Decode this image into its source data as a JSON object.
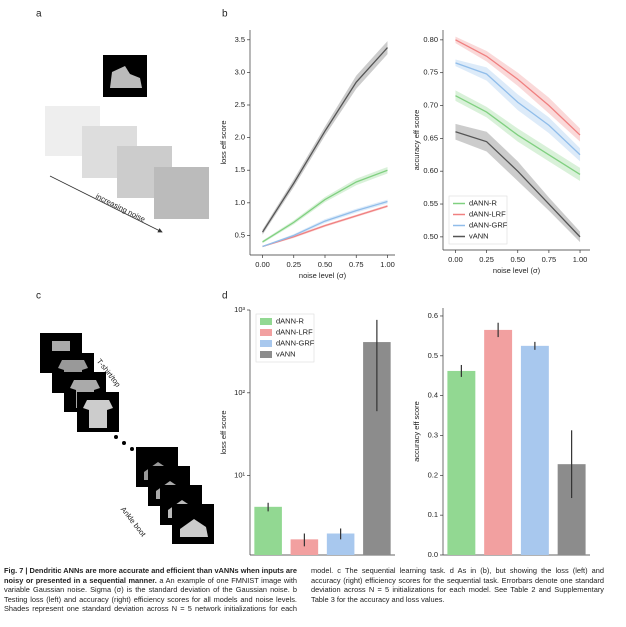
{
  "panel_labels": [
    "a",
    "b",
    "c",
    "d"
  ],
  "annotations": {
    "noise": "increasing noise",
    "first_class": "T-shirt/top",
    "last_class": "Ankle boot"
  },
  "caption": {
    "title": "Fig. 7 | Dendritic ANNs are more accurate and efficient than vANNs when inputs are noisy or presented in a sequential manner.",
    "body": "a An example of one FMNIST image with variable Gaussian noise. Sigma (σ) is the standard deviation of the Gaussian noise. b Testing loss (left) and accuracy (right) efficiency scores for all models and noise levels. Shades represent one standard deviation across N = 5 network initializations for each model. c The sequential learning task. d As in (b), but showing the loss (left) and accuracy (right) efficiency scores for the sequential task. Errorbars denote one standard deviation across N = 5 initializations for each model. See Table 2 and Supplementary Table 3 for the accuracy and loss values."
  },
  "chart_data": [
    {
      "type": "line",
      "xlabel": "noise level (σ)",
      "ylabel": "loss eff score",
      "x": [
        0,
        0.25,
        0.5,
        0.75,
        1.0
      ],
      "xlim": [
        -0.1,
        1.06
      ],
      "xticks": [
        {
          "value": 0,
          "label": "0.00"
        },
        0.25,
        {
          "value": 0.5,
          "label": "0.50"
        },
        0.75,
        {
          "value": 1,
          "label": "1.00"
        }
      ],
      "ylim": [
        0.2,
        3.65
      ],
      "yticks": [
        0.5,
        {
          "value": 1,
          "label": "1.0"
        },
        1.5,
        {
          "value": 2,
          "label": "2.0"
        },
        2.5,
        {
          "value": 3,
          "label": "3.0"
        },
        3.5
      ],
      "series": [
        {
          "color": "#80d080",
          "values": [
            0.4,
            0.7,
            1.05,
            1.32,
            1.5
          ],
          "errors": [
            0.02,
            0.03,
            0.04,
            0.05,
            0.05
          ]
        },
        {
          "color": "#f08080",
          "values": [
            0.33,
            0.48,
            0.65,
            0.8,
            0.95
          ],
          "errors": [
            0.01,
            0.02,
            0.02,
            0.02,
            0.02
          ]
        },
        {
          "color": "#90bdea",
          "values": [
            0.33,
            0.5,
            0.72,
            0.88,
            1.02
          ],
          "errors": [
            0.01,
            0.02,
            0.03,
            0.03,
            0.03
          ]
        },
        {
          "color": "#555555",
          "values": [
            0.55,
            1.3,
            2.1,
            2.85,
            3.38
          ],
          "errors": [
            0.04,
            0.06,
            0.07,
            0.1,
            0.1
          ]
        }
      ]
    },
    {
      "type": "line",
      "xlabel": "noise level (σ)",
      "ylabel": "accuracy eff score",
      "x": [
        0,
        0.25,
        0.5,
        0.75,
        1.0
      ],
      "xlim": [
        -0.1,
        1.08
      ],
      "xticks": [
        {
          "value": 0,
          "label": "0.00"
        },
        0.25,
        {
          "value": 0.5,
          "label": "0.50"
        },
        0.75,
        {
          "value": 1,
          "label": "1.00"
        }
      ],
      "ylim": [
        0.48,
        0.815
      ],
      "yticks": [
        {
          "value": 0.5,
          "label": "0.50"
        },
        0.55,
        {
          "value": 0.6,
          "label": "0.60"
        },
        0.65,
        {
          "value": 0.7,
          "label": "0.70"
        },
        0.75,
        {
          "value": 0.8,
          "label": "0.80"
        }
      ],
      "legend": "lower left",
      "series": [
        {
          "name": "dANN-R",
          "color": "#80d080",
          "values": [
            0.715,
            0.69,
            0.655,
            0.625,
            0.595
          ],
          "errors": [
            0.008,
            0.008,
            0.01,
            0.01,
            0.01
          ]
        },
        {
          "name": "dANN-LRF",
          "color": "#f08080",
          "values": [
            0.8,
            0.775,
            0.74,
            0.7,
            0.655
          ],
          "errors": [
            0.005,
            0.008,
            0.01,
            0.012,
            0.01
          ]
        },
        {
          "name": "dANN-GRF",
          "color": "#90bdea",
          "values": [
            0.765,
            0.748,
            0.705,
            0.67,
            0.625
          ],
          "errors": [
            0.005,
            0.01,
            0.012,
            0.012,
            0.01
          ]
        },
        {
          "name": "vANN",
          "color": "#555555",
          "values": [
            0.66,
            0.645,
            0.6,
            0.55,
            0.5
          ],
          "errors": [
            0.012,
            0.015,
            0.015,
            0.01,
            0.008
          ]
        }
      ]
    },
    {
      "type": "bar",
      "ylabel": "loss eff score",
      "log_scale": true,
      "ylim": [
        1.1,
        1000
      ],
      "yticks": [
        {
          "value": 10,
          "label": "10¹"
        },
        {
          "value": 100,
          "label": "10²"
        },
        {
          "value": 1000,
          "label": "10³"
        }
      ],
      "legend": "upper left",
      "series": [
        {
          "name": "dANN-R",
          "color": "#92d892",
          "values": [
            4.2
          ],
          "errors": [
            0.5
          ]
        },
        {
          "name": "dANN-LRF",
          "color": "#f2a0a0",
          "values": [
            1.7
          ],
          "errors": [
            0.3
          ]
        },
        {
          "name": "dANN-GRF",
          "color": "#a8c8ee",
          "values": [
            2.0
          ],
          "errors": [
            0.3
          ]
        },
        {
          "name": "vANN",
          "color": "#8c8c8c",
          "values": [
            410
          ],
          "errors": [
            350
          ]
        }
      ]
    },
    {
      "type": "bar",
      "ylabel": "accuracy eff score",
      "ylim": [
        0,
        0.62
      ],
      "yticks": [
        {
          "value": 0,
          "label": "0.0"
        },
        0.1,
        0.2,
        0.3,
        0.4,
        0.5,
        0.6
      ],
      "series": [
        {
          "color": "#92d892",
          "values": [
            0.462
          ],
          "errors": [
            0.015
          ]
        },
        {
          "color": "#f2a0a0",
          "values": [
            0.565
          ],
          "errors": [
            0.018
          ]
        },
        {
          "color": "#a8c8ee",
          "values": [
            0.525
          ],
          "errors": [
            0.01
          ]
        },
        {
          "color": "#8c8c8c",
          "values": [
            0.228
          ],
          "errors": [
            0.085
          ]
        }
      ]
    }
  ]
}
